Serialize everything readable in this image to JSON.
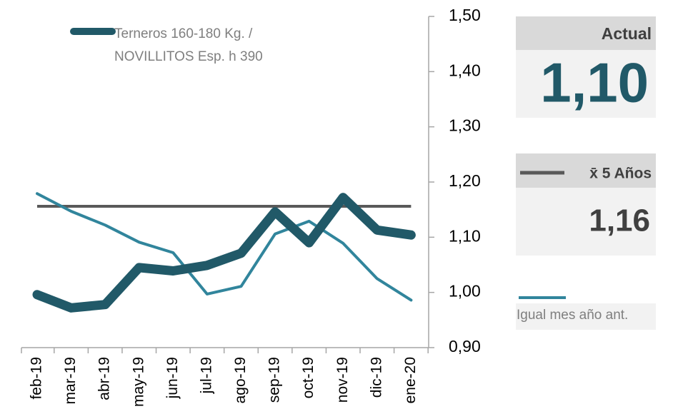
{
  "chart_data": {
    "type": "line",
    "categories": [
      "feb-19",
      "mar-19",
      "abr-19",
      "may-19",
      "jun-19",
      "jul-19",
      "ago-19",
      "sep-19",
      "oct-19",
      "nov-19",
      "dic-19",
      "ene-20"
    ],
    "series": [
      {
        "name": "Terneros 160-180 Kg. / NOVILLITOS Esp. h 390",
        "color": "#215968",
        "values": [
          0.996,
          0.972,
          0.978,
          1.045,
          1.039,
          1.049,
          1.071,
          1.146,
          1.09,
          1.172,
          1.113,
          1.104
        ]
      },
      {
        "name": "Igual mes año ant.",
        "color": "#31859c",
        "values": [
          1.179,
          1.147,
          1.122,
          1.091,
          1.072,
          0.997,
          1.011,
          1.106,
          1.129,
          1.089,
          1.025,
          0.986
        ]
      }
    ],
    "average": {
      "name": "x̄ 5 Años",
      "color": "#595959",
      "value": 1.156,
      "value_label": "1,16"
    },
    "actual": {
      "label": "Actual",
      "value": 1.104,
      "value_label": "1,10"
    },
    "ylim": [
      0.9,
      1.5
    ],
    "yticks": [
      {
        "value": 0.9,
        "label": "0,90"
      },
      {
        "value": 1.0,
        "label": "1,00"
      },
      {
        "value": 1.1,
        "label": "1,10"
      },
      {
        "value": 1.2,
        "label": "1,20"
      },
      {
        "value": 1.3,
        "label": "1,30"
      },
      {
        "value": 1.4,
        "label": "1,40"
      },
      {
        "value": 1.5,
        "label": "1,50"
      }
    ]
  }
}
